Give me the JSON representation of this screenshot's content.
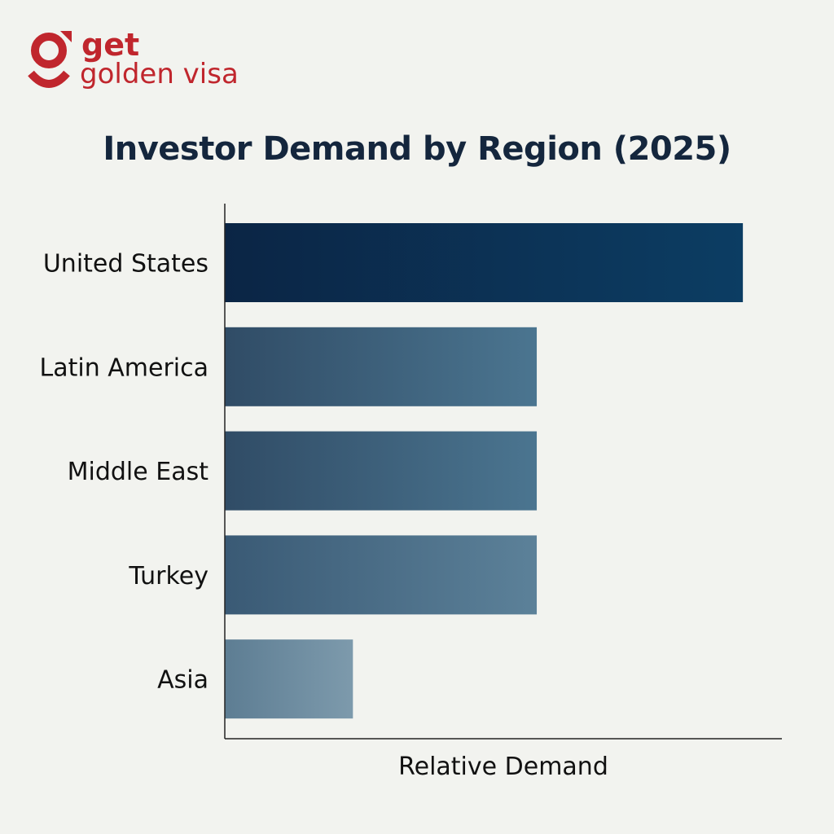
{
  "logo": {
    "line1": "get",
    "line2": "golden visa",
    "color": "#c0262d"
  },
  "chart_data": {
    "type": "bar",
    "orientation": "horizontal",
    "title": "Investor Demand by Region (2025)",
    "xlabel": "Relative Demand",
    "ylabel": "",
    "categories": [
      "United States",
      "Latin America",
      "Middle East",
      "Turkey",
      "Asia"
    ],
    "values": [
      93,
      56,
      56,
      56,
      23
    ],
    "xlim": [
      0,
      100
    ],
    "grid": false,
    "colors": [
      [
        "#0b2545",
        "#0c3d63"
      ],
      [
        "#304c66",
        "#4b7590"
      ],
      [
        "#304c66",
        "#4b7590"
      ],
      [
        "#3a5a75",
        "#5c8199"
      ],
      [
        "#5d7d93",
        "#7d9aac"
      ]
    ]
  }
}
